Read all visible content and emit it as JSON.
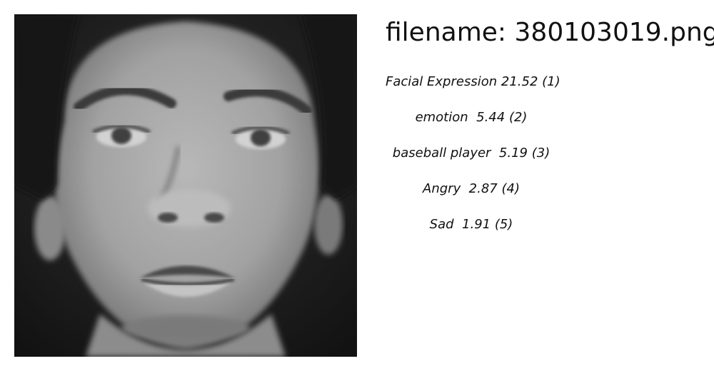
{
  "image": {
    "icon": "face-photo",
    "colors": {
      "background": "#1c1c1c",
      "skin": "#a9a9a9",
      "hair": "#151515"
    }
  },
  "filename": {
    "label": "filename:",
    "value": "380103019.png"
  },
  "labels": [
    {
      "name": "Facial Expression",
      "score": "21.52",
      "rank": "(1)"
    },
    {
      "name": "emotion",
      "score": "5.44",
      "rank": "(2)"
    },
    {
      "name": "baseball player",
      "score": "5.19",
      "rank": "(3)"
    },
    {
      "name": "Angry",
      "score": "2.87",
      "rank": "(4)"
    },
    {
      "name": "Sad",
      "score": "1.91",
      "rank": "(5)"
    }
  ]
}
